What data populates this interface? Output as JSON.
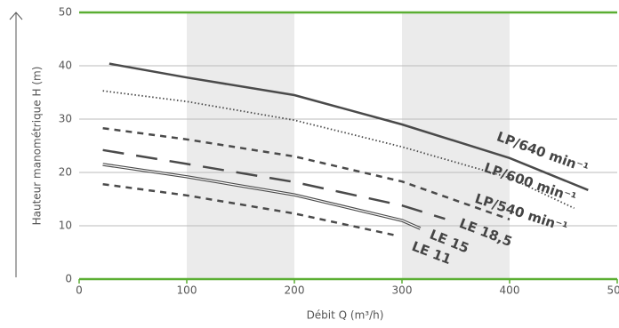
{
  "chart_data": {
    "type": "line",
    "xlabel": "Débit Q (m³/h)",
    "ylabel": "Hauteur manométrique H (m)",
    "xlim": [
      0,
      500
    ],
    "xticks": [
      0,
      100,
      200,
      300,
      400,
      500
    ],
    "ylim": [
      0,
      50
    ],
    "yticks": [
      0,
      10,
      20,
      30,
      40,
      50
    ],
    "grid": true,
    "shaded_bands": [
      [
        100,
        200
      ],
      [
        300,
        400
      ]
    ],
    "series": [
      {
        "name": "LP/640 min⁻¹",
        "color": "#4a4a4a",
        "style": "solid",
        "x": [
          28,
          100,
          200,
          300,
          400,
          473
        ],
        "values": [
          40.4,
          37.8,
          34.5,
          29.0,
          22.7,
          16.7
        ]
      },
      {
        "name": "LP/600 min⁻¹",
        "color": "#4a4a4a",
        "style": "dotted",
        "x": [
          22,
          100,
          200,
          300,
          400,
          460
        ],
        "values": [
          35.3,
          33.3,
          29.8,
          24.8,
          19.0,
          13.3
        ]
      },
      {
        "name": "LP/540 min⁻¹",
        "color": "#4a4a4a",
        "style": "dashed",
        "x": [
          22,
          100,
          200,
          300,
          400
        ],
        "values": [
          28.3,
          26.2,
          23.0,
          18.3,
          11.2
        ]
      },
      {
        "name": "LE 18,5",
        "color": "#4a4a4a",
        "style": "longdash",
        "x": [
          22,
          100,
          200,
          300,
          340
        ],
        "values": [
          24.2,
          21.6,
          18.2,
          13.8,
          11.3
        ]
      },
      {
        "name": "LE 15",
        "color": "#4a4a4a",
        "style": "double",
        "x": [
          22,
          100,
          200,
          300,
          317
        ],
        "values": [
          21.5,
          19.2,
          15.8,
          11.0,
          9.5
        ]
      },
      {
        "name": "LE 11",
        "color": "#4a4a4a",
        "style": "dashed",
        "x": [
          22,
          100,
          200,
          294
        ],
        "values": [
          17.8,
          15.7,
          12.3,
          8.2
        ]
      }
    ]
  }
}
